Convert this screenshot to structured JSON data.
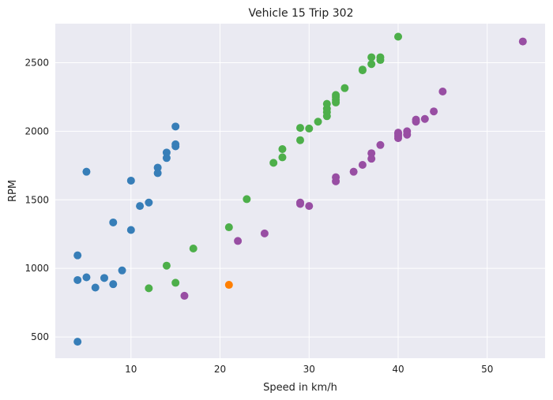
{
  "chart_data": {
    "type": "scatter",
    "title": "Vehicle 15 Trip 302",
    "xlabel": "Speed in km/h",
    "ylabel": "RPM",
    "xlim": [
      1.5,
      56.5
    ],
    "ylim": [
      345,
      2785
    ],
    "xticks": [
      10,
      20,
      30,
      40,
      50
    ],
    "yticks": [
      500,
      1000,
      1500,
      2000,
      2500
    ],
    "grid": true,
    "background": "#EAEAF2",
    "series": [
      {
        "color": "#377EB8",
        "points": [
          [
            4,
            465
          ],
          [
            4,
            915
          ],
          [
            4,
            1095
          ],
          [
            5,
            935
          ],
          [
            5,
            1705
          ],
          [
            6,
            860
          ],
          [
            7,
            930
          ],
          [
            8,
            885
          ],
          [
            8,
            1335
          ],
          [
            9,
            985
          ],
          [
            10,
            1640
          ],
          [
            10,
            1280
          ],
          [
            11,
            1455
          ],
          [
            12,
            1480
          ],
          [
            13,
            1735
          ],
          [
            13,
            1695
          ],
          [
            14,
            1805
          ],
          [
            14,
            1845
          ],
          [
            15,
            1890
          ],
          [
            15,
            1905
          ],
          [
            15,
            2035
          ]
        ]
      },
      {
        "color": "#4DAF4A",
        "points": [
          [
            12,
            855
          ],
          [
            14,
            1020
          ],
          [
            15,
            895
          ],
          [
            17,
            1145
          ],
          [
            21,
            1300
          ],
          [
            23,
            1505
          ],
          [
            26,
            1770
          ],
          [
            27,
            1810
          ],
          [
            27,
            1870
          ],
          [
            29,
            1935
          ],
          [
            29,
            2025
          ],
          [
            30,
            2020
          ],
          [
            31,
            2070
          ],
          [
            32,
            2110
          ],
          [
            32,
            2140
          ],
          [
            32,
            2165
          ],
          [
            32,
            2200
          ],
          [
            33,
            2210
          ],
          [
            33,
            2230
          ],
          [
            33,
            2250
          ],
          [
            33,
            2265
          ],
          [
            34,
            2315
          ],
          [
            36,
            2450
          ],
          [
            36,
            2445
          ],
          [
            37,
            2490
          ],
          [
            37,
            2540
          ],
          [
            38,
            2520
          ],
          [
            38,
            2540
          ],
          [
            40,
            2690
          ]
        ]
      },
      {
        "color": "#984EA3",
        "points": [
          [
            16,
            800
          ],
          [
            22,
            1200
          ],
          [
            25,
            1255
          ],
          [
            29,
            1470
          ],
          [
            29,
            1480
          ],
          [
            30,
            1455
          ],
          [
            33,
            1635
          ],
          [
            33,
            1665
          ],
          [
            35,
            1705
          ],
          [
            36,
            1755
          ],
          [
            37,
            1800
          ],
          [
            37,
            1840
          ],
          [
            38,
            1900
          ],
          [
            40,
            1950
          ],
          [
            40,
            1965
          ],
          [
            40,
            1980
          ],
          [
            40,
            1990
          ],
          [
            41,
            1975
          ],
          [
            41,
            2000
          ],
          [
            42,
            2070
          ],
          [
            42,
            2085
          ],
          [
            43,
            2090
          ],
          [
            44,
            2145
          ],
          [
            45,
            2290
          ],
          [
            54,
            2655
          ]
        ]
      },
      {
        "color": "#FF7F00",
        "points": [
          [
            21,
            880
          ]
        ]
      }
    ]
  }
}
